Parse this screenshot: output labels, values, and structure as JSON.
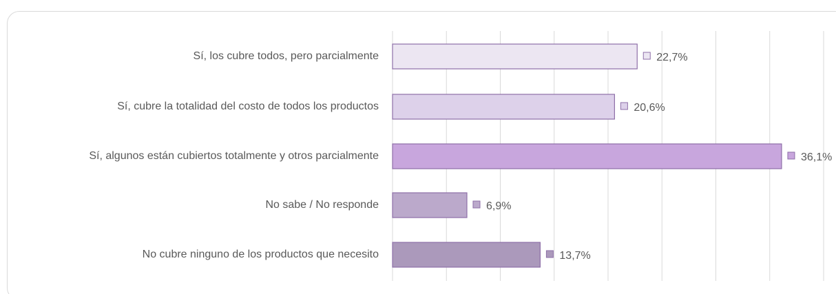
{
  "chart_data": {
    "type": "barh",
    "categories": [
      "Sí, los cubre todos, pero parcialmente",
      "Sí, cubre la totalidad del costo de todos los productos",
      "Sí, algunos están cubiertos totalmente y otros parcialmente",
      "No sabe / No responde",
      "No cubre ninguno de los productos que necesito"
    ],
    "values": [
      22.7,
      20.6,
      36.1,
      6.9,
      13.7
    ],
    "value_labels": [
      "22,7%",
      "20,6%",
      "36,1%",
      "6,9%",
      "13,7%"
    ],
    "colors": [
      "#ece6f2",
      "#ddd1ea",
      "#c8a6dd",
      "#bba9cb",
      "#ab99bb"
    ],
    "xlim": [
      0,
      40
    ],
    "xticks": [
      0,
      5,
      10,
      15,
      20,
      25,
      30,
      35,
      40
    ],
    "grid": true
  }
}
